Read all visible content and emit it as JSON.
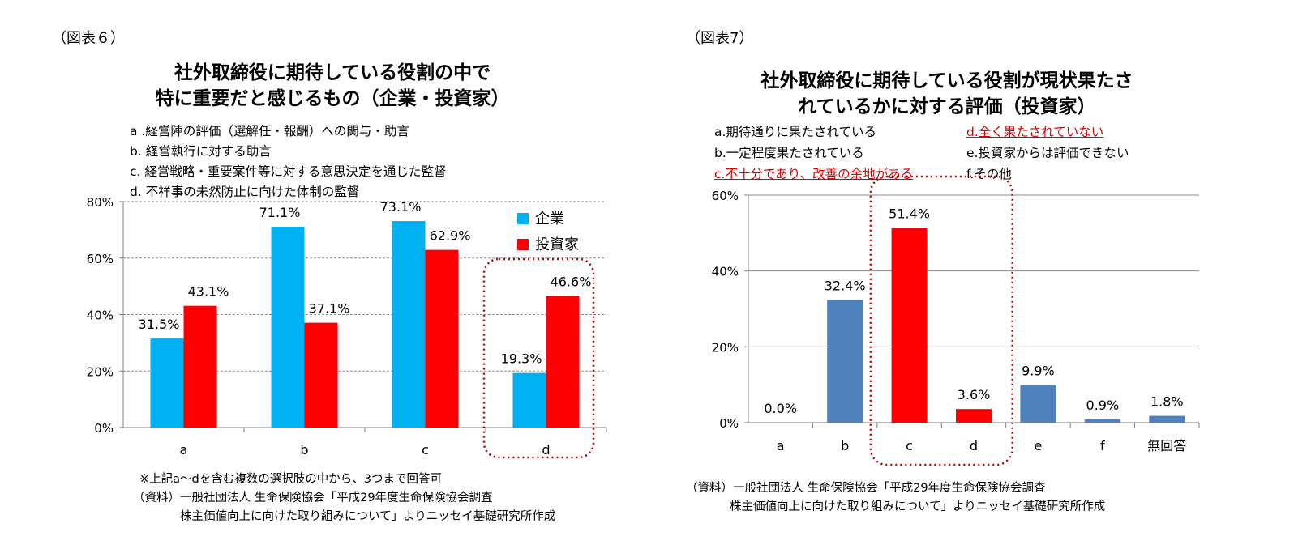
{
  "chart6": {
    "figure_label": "（図表６）",
    "title_line1": "社外取締役に期待している役割の中で",
    "title_line2": "特に重要だと感じるもの（企業・投資家）",
    "options": [
      "a .経営陣の評価（選解任・報酬）への関与・助言",
      "b. 経営執行に対する助言",
      "c. 経営戦略・重要案件等に対する意思決定を通じた監督",
      "d. 不祥事の未然防止に向けた体制の監督"
    ],
    "notes": [
      "※上記a～dを含む複数の選択肢の中から、3つまで回答可",
      "（資料）一般社団法人 生命保険協会「平成29年度生命保険協会調査",
      "株主価値向上に向けた取り組みについて」よりニッセイ基礎研究所作成"
    ]
  },
  "chart7": {
    "figure_label": "（図表7）",
    "title_line1": "社外取締役に期待している役割が現状果たさ",
    "title_line2": "れているかに対する評価（投資家）",
    "options": [
      {
        "text": "a.期待通りに果たされている",
        "highlight": false
      },
      {
        "text": "d.全く果たされていない",
        "highlight": true
      },
      {
        "text": "b.一定程度果たされている",
        "highlight": false
      },
      {
        "text": "e.投資家からは評価できない",
        "highlight": false
      },
      {
        "text": "c.不十分であり、改善の余地がある",
        "highlight": true
      },
      {
        "text": "f.その他",
        "highlight": false
      }
    ],
    "notes": [
      "（資料）一般社団法人 生命保険協会「平成29年度生命保険協会調査",
      "株主価値向上に向けた取り組みについて」よりニッセイ基礎研究所作成"
    ]
  },
  "chart_data": [
    {
      "type": "bar",
      "title": "社外取締役に期待している役割の中で特に重要だと感じるもの（企業・投資家）",
      "categories": [
        "a",
        "b",
        "c",
        "d"
      ],
      "series": [
        {
          "name": "企業",
          "color": "#00b0f0",
          "values": [
            31.5,
            71.1,
            73.1,
            19.3
          ]
        },
        {
          "name": "投資家",
          "color": "#ff0000",
          "values": [
            43.1,
            37.1,
            62.9,
            46.6
          ]
        }
      ],
      "data_labels": [
        [
          "31.5%",
          "71.1%",
          "73.1%",
          "19.3%"
        ],
        [
          "43.1%",
          "37.1%",
          "62.9%",
          "46.6%"
        ]
      ],
      "ylim": [
        0,
        80
      ],
      "yticks": [
        "0%",
        "20%",
        "40%",
        "60%",
        "80%"
      ],
      "grid": "dashed horizontal",
      "legend": "top-right",
      "highlight_category": "d"
    },
    {
      "type": "bar",
      "title": "社外取締役に期待している役割が現状果たされているかに対する評価（投資家）",
      "categories": [
        "a",
        "b",
        "c",
        "d",
        "e",
        "f",
        "無回答"
      ],
      "values": [
        0.0,
        32.4,
        51.4,
        3.6,
        9.9,
        0.9,
        1.8
      ],
      "data_labels": [
        "0.0%",
        "32.4%",
        "51.4%",
        "3.6%",
        "9.9%",
        "0.9%",
        "1.8%"
      ],
      "colors": [
        "#4f81bd",
        "#4f81bd",
        "#ff0000",
        "#ff0000",
        "#4f81bd",
        "#4f81bd",
        "#4f81bd"
      ],
      "ylim": [
        0,
        60
      ],
      "yticks": [
        "0%",
        "20%",
        "40%",
        "60%"
      ],
      "grid": "solid horizontal",
      "highlight_categories": [
        "c",
        "d"
      ]
    }
  ]
}
